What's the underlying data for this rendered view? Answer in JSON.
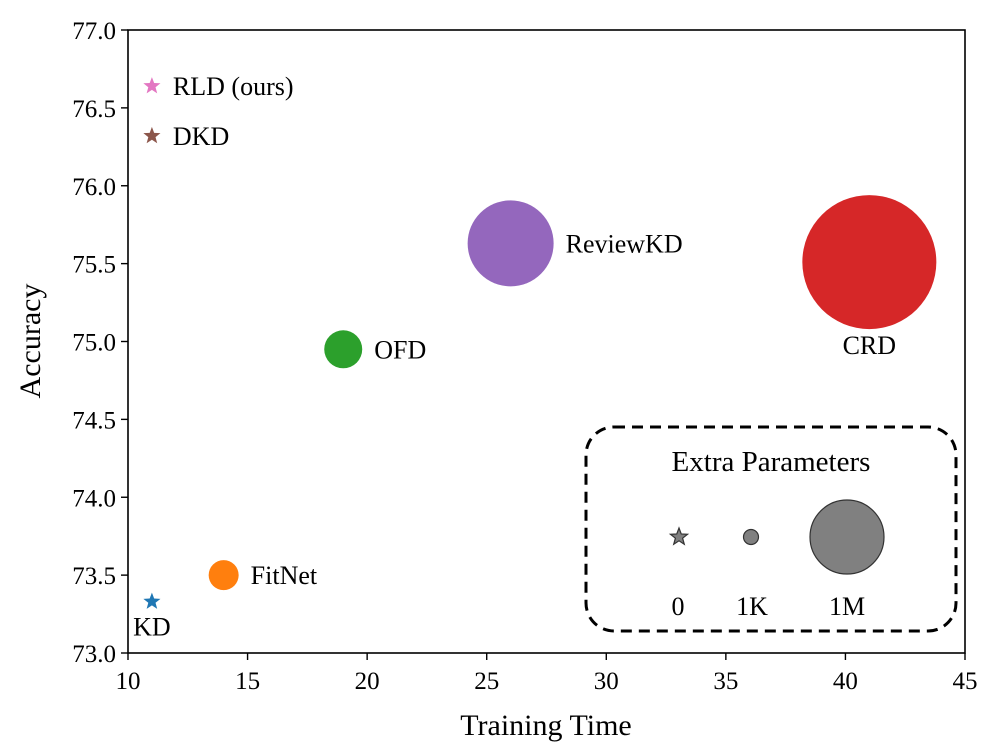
{
  "chart_data": {
    "type": "scatter",
    "xlabel": "Training Time",
    "ylabel": "Accuracy",
    "xlim": [
      10,
      45
    ],
    "ylim": [
      73.0,
      77.0
    ],
    "xticks": [
      "10",
      "15",
      "20",
      "25",
      "30",
      "35",
      "40",
      "45"
    ],
    "yticks": [
      "73.0",
      "73.5",
      "74.0",
      "74.5",
      "75.0",
      "75.5",
      "76.0",
      "76.5",
      "77.0"
    ],
    "grid": false,
    "points": [
      {
        "name": "KD",
        "x": 11,
        "y": 73.33,
        "marker": "star",
        "color": "#1f77b4",
        "label_position": "below"
      },
      {
        "name": "FitNet",
        "x": 14,
        "y": 73.5,
        "marker": "circle",
        "color": "#ff7f0e",
        "label_position": "right"
      },
      {
        "name": "OFD",
        "x": 19,
        "y": 74.95,
        "marker": "circle",
        "color": "#2ca02c",
        "label_position": "right"
      },
      {
        "name": "ReviewKD",
        "x": 26,
        "y": 75.63,
        "marker": "circle",
        "color": "#9467bd",
        "label_position": "right"
      },
      {
        "name": "CRD",
        "x": 41,
        "y": 75.51,
        "marker": "circle",
        "color": "#d62728",
        "label_position": "below"
      },
      {
        "name": "DKD",
        "x": 11,
        "y": 76.32,
        "marker": "star",
        "color": "#8c564b",
        "label_position": "right"
      },
      {
        "name": "RLD (ours)",
        "x": 11,
        "y": 76.64,
        "marker": "star",
        "color": "#e377c2",
        "label_position": "right"
      }
    ],
    "legend": {
      "title": "Extra Parameters",
      "placement": "bottom-right",
      "border": "dashed",
      "entries": [
        {
          "label": "0",
          "marker": "star"
        },
        {
          "label": "1K",
          "marker": "circle"
        },
        {
          "label": "1M",
          "marker": "circle"
        }
      ],
      "color": "#808080"
    }
  }
}
